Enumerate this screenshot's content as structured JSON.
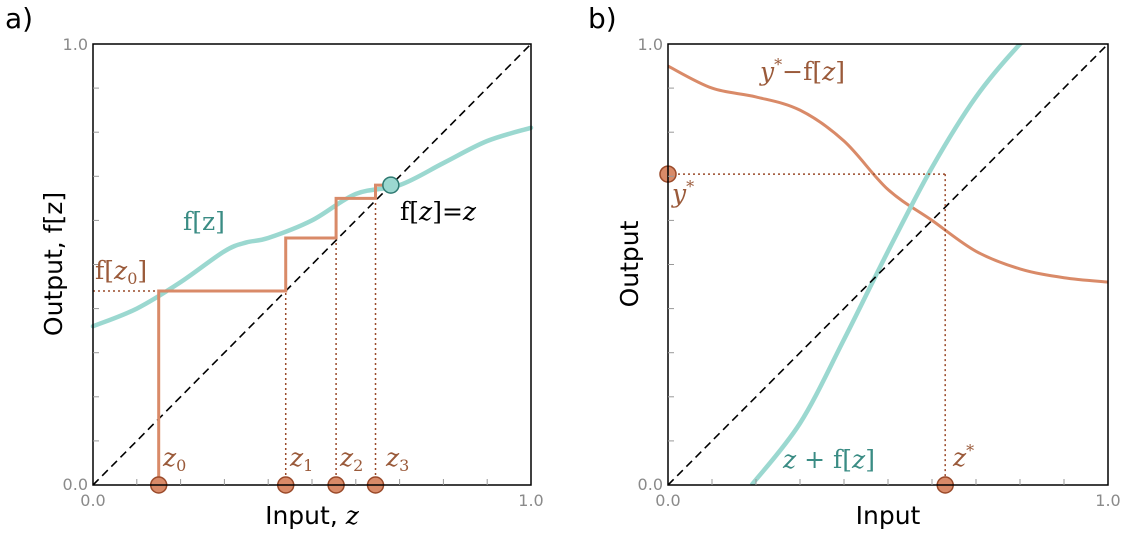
{
  "colors": {
    "f_curve": "#9bd8d0",
    "iteration": "#d98a68",
    "guide": "#9a4a2a",
    "label_teal": "#3a8c84",
    "label_brown": "#9a5a3a",
    "point_fill": "#d98a68",
    "point_stroke": "#9a4a2a",
    "fixed_point_fill": "#9bd8d0",
    "fixed_point_stroke": "#2f7a72"
  },
  "chart_data": [
    {
      "panel_label": "a)",
      "type": "line",
      "xlabel": "Input, ",
      "xlabel_var": "z",
      "ylabel": "Output, f[z]",
      "xlim": [
        0,
        1
      ],
      "ylim": [
        0,
        1
      ],
      "x_ticks": [
        "0.0",
        "1.0"
      ],
      "y_ticks": [
        "0.0",
        "1.0"
      ],
      "grid": false,
      "series": [
        {
          "name": "f[z]",
          "x": [
            0.0,
            0.1,
            0.2,
            0.3,
            0.35,
            0.4,
            0.5,
            0.6,
            0.7,
            0.8,
            0.9,
            1.0
          ],
          "y": [
            0.36,
            0.4,
            0.46,
            0.53,
            0.55,
            0.56,
            0.6,
            0.66,
            0.68,
            0.73,
            0.78,
            0.81
          ]
        },
        {
          "name": "identity",
          "x": [
            0,
            1
          ],
          "y": [
            0,
            1
          ]
        }
      ],
      "iteration_points": [
        {
          "label": "z",
          "sub": "0",
          "x": 0.15
        },
        {
          "label": "z",
          "sub": "1",
          "x": 0.44
        },
        {
          "label": "z",
          "sub": "2",
          "x": 0.555
        },
        {
          "label": "z",
          "sub": "3",
          "x": 0.645
        }
      ],
      "iteration_path_y": [
        0.44,
        0.56,
        0.65,
        0.68
      ],
      "fixed_point": {
        "x": 0.68,
        "y": 0.68
      },
      "annotations": {
        "f_curve": "f[z]",
        "fz0_fn": "f[",
        "fz0_var": "z",
        "fz0_sub": "0",
        "fz0_close": "]",
        "fixed_lhs_fn": "f[",
        "fixed_lhs_var": "z",
        "fixed_mid": "]=",
        "fixed_rhs_var": "z"
      }
    },
    {
      "panel_label": "b)",
      "type": "line",
      "xlabel": "Input",
      "ylabel": "Output",
      "xlim": [
        0,
        1
      ],
      "ylim": [
        0,
        1
      ],
      "x_ticks": [
        "0.0",
        "1.0"
      ],
      "y_ticks": [
        "0.0",
        "1.0"
      ],
      "grid": false,
      "series": [
        {
          "name": "y*−f[z]",
          "x": [
            0.0,
            0.1,
            0.2,
            0.3,
            0.4,
            0.5,
            0.6,
            0.7,
            0.8,
            0.9,
            1.0
          ],
          "y": [
            0.95,
            0.9,
            0.88,
            0.85,
            0.78,
            0.67,
            0.6,
            0.53,
            0.49,
            0.47,
            0.46
          ]
        },
        {
          "name": "z+f[z]",
          "x": [
            0.19,
            0.3,
            0.4,
            0.5,
            0.6,
            0.7,
            0.8,
            0.83
          ],
          "y": [
            0.0,
            0.14,
            0.33,
            0.53,
            0.72,
            0.88,
            1.0,
            1.02
          ]
        },
        {
          "name": "identity",
          "x": [
            0,
            1
          ],
          "y": [
            0,
            1
          ]
        }
      ],
      "y_star": 0.705,
      "z_star": 0.63,
      "annotations": {
        "curve1_var": "y",
        "curve1_sup": "*",
        "curve1_rest": "−f[",
        "curve1_var2": "z",
        "curve1_close": "]",
        "curve2_var": "z",
        "curve2_rest": " + f[",
        "curve2_var2": "z",
        "curve2_close": "]",
        "ystar_var": "y",
        "ystar_sup": "*",
        "zstar_var": "z",
        "zstar_sup": "*"
      }
    }
  ]
}
